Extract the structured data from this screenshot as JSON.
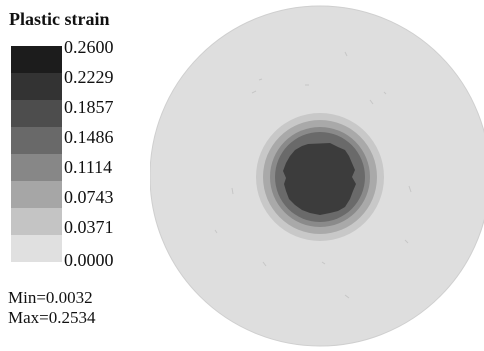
{
  "legend": {
    "title": "Plastic strain",
    "ticks": [
      "0.2600",
      "0.2229",
      "0.1857",
      "0.1486",
      "0.1114",
      "0.0743",
      "0.0371",
      "0.0000"
    ],
    "band_colors": [
      "#1c1c1c",
      "#333333",
      "#4d4d4d",
      "#696969",
      "#878787",
      "#a6a6a6",
      "#c4c4c4",
      "#e0e0e0"
    ]
  },
  "stats": {
    "min": "Min=0.0032",
    "max": "Max=0.2534"
  },
  "contour": {
    "outer_fill": "#dedede",
    "band_fills": [
      "#c8c8c8",
      "#a9a9a9",
      "#8a8a8a",
      "#6a6a6a",
      "#3c3c3c"
    ]
  }
}
